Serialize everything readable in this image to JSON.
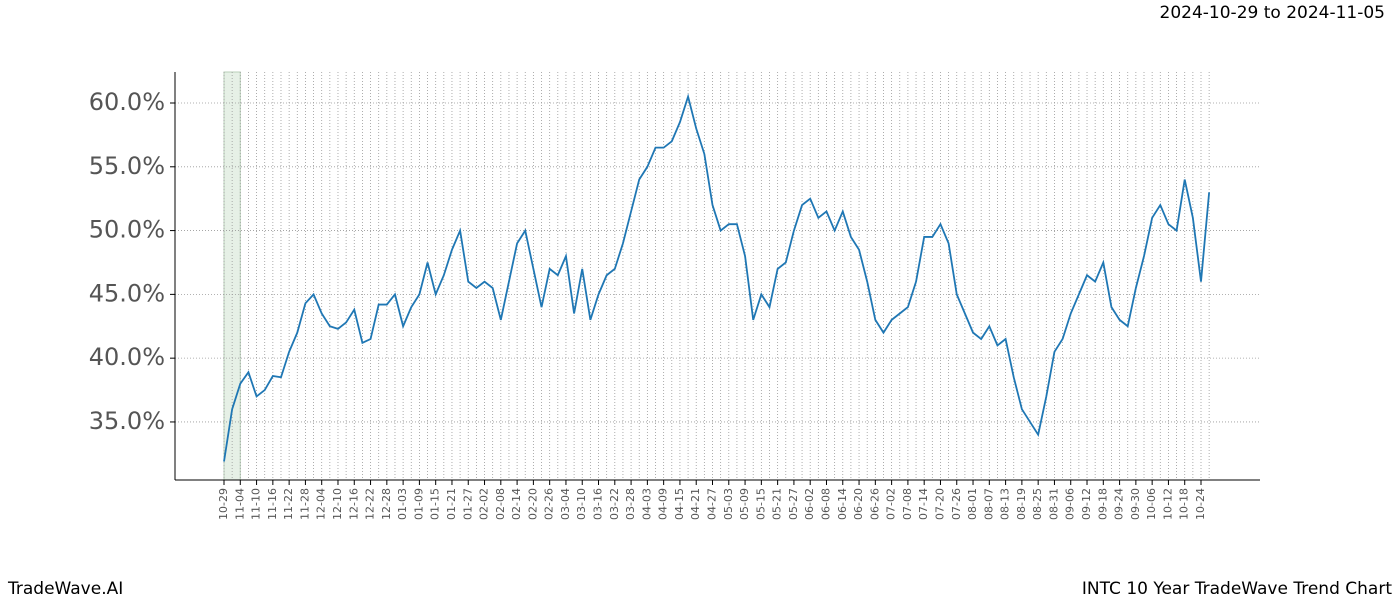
{
  "header": "2024-10-29 to 2024-11-05",
  "footer_left": "TradeWave.AI",
  "footer_right": "INTC 10 Year TradeWave Trend Chart",
  "chart_data": {
    "type": "line",
    "categories": [
      "10-29",
      null,
      "11-04",
      null,
      "11-10",
      null,
      "11-16",
      null,
      "11-22",
      null,
      "11-28",
      null,
      "12-04",
      null,
      "12-10",
      null,
      "12-16",
      null,
      "12-22",
      null,
      "12-28",
      null,
      "01-03",
      null,
      "01-09",
      null,
      "01-15",
      null,
      "01-21",
      null,
      "01-27",
      null,
      "02-02",
      null,
      "02-08",
      null,
      "02-14",
      null,
      "02-20",
      null,
      "02-26",
      null,
      "03-04",
      null,
      "03-10",
      null,
      "03-16",
      null,
      "03-22",
      null,
      "03-28",
      null,
      "04-03",
      null,
      "04-09",
      null,
      "04-15",
      null,
      "04-21",
      null,
      "04-27",
      null,
      "05-03",
      null,
      "05-09",
      null,
      "05-15",
      null,
      "05-21",
      null,
      "05-27",
      null,
      "06-02",
      null,
      "06-08",
      null,
      "06-14",
      null,
      "06-20",
      null,
      "06-26",
      null,
      "07-02",
      null,
      "07-08",
      null,
      "07-14",
      null,
      "07-20",
      null,
      "07-26",
      null,
      "08-01",
      null,
      "08-07",
      null,
      "08-13",
      null,
      "08-19",
      null,
      "08-25",
      null,
      "08-31",
      null,
      "09-06",
      null,
      "09-12",
      null,
      "09-18",
      null,
      "09-24",
      null,
      "09-30",
      null,
      "10-06",
      null,
      "10-12",
      null,
      "10-18",
      null,
      "10-24",
      null
    ],
    "series": [
      {
        "color": "#1f77b4",
        "values": [
          31.9,
          36,
          38,
          38.9,
          37,
          37.5,
          38.6,
          38.5,
          40.5,
          42,
          44.3,
          45,
          43.5,
          42.5,
          42.3,
          42.8,
          43.8,
          41.2,
          41.5,
          44.2,
          44.2,
          45,
          42.5,
          44,
          45,
          47.5,
          45,
          46.5,
          48.5,
          50,
          46,
          45.5,
          46,
          45.5,
          43,
          46,
          49,
          50,
          47,
          44,
          47,
          46.5,
          48,
          43.5,
          47,
          43,
          45,
          46.5,
          47,
          49,
          51.5,
          54,
          55,
          56.5,
          56.5,
          57,
          58.5,
          60.5,
          58,
          56,
          52,
          50,
          50.5,
          50.5,
          48,
          43,
          45,
          44,
          47,
          47.5,
          50,
          52,
          52.5,
          51,
          51.5,
          50,
          51.5,
          49.5,
          48.5,
          46,
          43,
          42,
          43,
          43.5,
          44,
          46,
          49.5,
          49.5,
          50.5,
          49,
          45,
          43.5,
          42,
          41.5,
          42.5,
          41,
          41.5,
          38.5,
          36,
          35,
          34,
          37,
          40.5,
          41.5,
          43.5,
          45,
          46.5,
          46,
          47.5,
          44,
          43,
          42.5,
          45.5,
          48,
          51,
          52,
          50.5,
          50,
          54,
          51,
          46,
          53
        ]
      }
    ],
    "ylim": [
      30.45,
      62.43
    ],
    "yticks": [
      {
        "value": 35,
        "label": "35.0%"
      },
      {
        "value": 40,
        "label": "40.0%"
      },
      {
        "value": 45,
        "label": "45.0%"
      },
      {
        "value": 50,
        "label": "50.0%"
      },
      {
        "value": 55,
        "label": "55.0%"
      },
      {
        "value": 60,
        "label": "60.0%"
      }
    ],
    "grid": true,
    "highlight": {
      "from": "10-29",
      "to": "11-04",
      "color": "#e6f0e6"
    }
  }
}
